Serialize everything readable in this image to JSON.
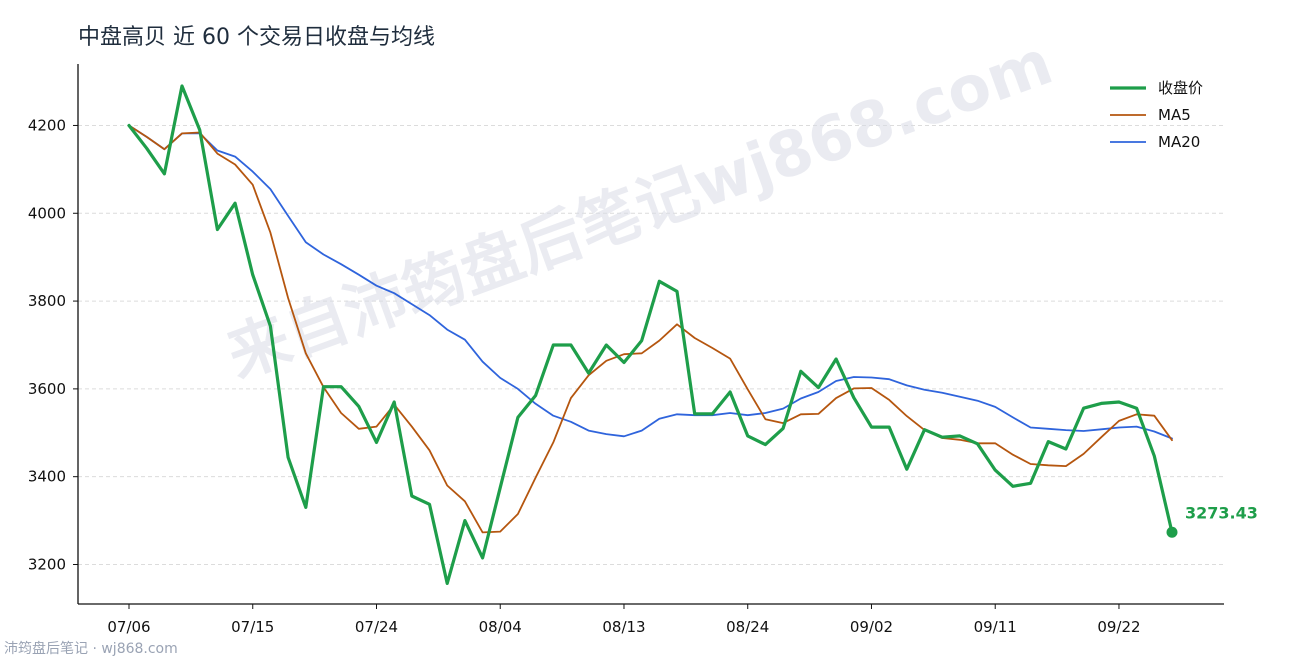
{
  "chart_data": {
    "type": "line",
    "title": "中盘高贝 近 60 个交易日收盘与均线",
    "xlabel": "",
    "ylabel": "",
    "ylim": [
      3110,
      4340
    ],
    "yticks": [
      3200,
      3400,
      3600,
      3800,
      4000,
      4200
    ],
    "x_tick_labels": [
      "07/06",
      "07/15",
      "07/24",
      "08/04",
      "08/13",
      "08/24",
      "09/02",
      "09/11",
      "09/22"
    ],
    "x_tick_indices": [
      0,
      7,
      14,
      21,
      28,
      35,
      42,
      49,
      56
    ],
    "grid": "horizontal dashed",
    "legend_position": "top-right",
    "series": [
      {
        "name": "收盘价",
        "color": "#1e9e4a",
        "values": [
          4200,
          4148,
          4090,
          4290,
          4190,
          3963,
          4023,
          3860,
          3743,
          3444,
          3330,
          3605,
          3605,
          3560,
          3478,
          3570,
          3356,
          3337,
          3157,
          3300,
          3215,
          3375,
          3535,
          3585,
          3700,
          3700,
          3636,
          3700,
          3660,
          3710,
          3845,
          3822,
          3543,
          3543,
          3593,
          3493,
          3473,
          3510,
          3640,
          3603,
          3668,
          3580,
          3513,
          3513,
          3417,
          3507,
          3490,
          3493,
          3475,
          3415,
          3378,
          3385,
          3480,
          3463,
          3556,
          3567,
          3570,
          3556,
          3447,
          3273.43
        ]
      },
      {
        "name": "MA5",
        "color": "#b5560f",
        "values": [
          4200,
          4174,
          4146,
          4182,
          4184,
          4136,
          4111,
          4065,
          3956,
          3807,
          3681,
          3604,
          3545,
          3509,
          3514,
          3564,
          3514,
          3460,
          3380,
          3344,
          3273,
          3275,
          3315,
          3398,
          3478,
          3579,
          3631,
          3664,
          3679,
          3681,
          3710,
          3747,
          3716,
          3693,
          3669,
          3599,
          3531,
          3522,
          3542,
          3543,
          3579,
          3601,
          3602,
          3575,
          3538,
          3506,
          3488,
          3484,
          3476,
          3476,
          3450,
          3429,
          3426,
          3424,
          3452,
          3490,
          3527,
          3542,
          3539,
          3483
        ]
      },
      {
        "name": "MA20",
        "color": "#2f64dc",
        "values": [
          4200,
          4174,
          4146,
          4182,
          4182,
          4143,
          4129,
          4095,
          4055,
          3994,
          3934,
          3906,
          3884,
          3860,
          3835,
          3818,
          3793,
          3768,
          3735,
          3712,
          3662,
          3625,
          3600,
          3566,
          3539,
          3525,
          3505,
          3497,
          3492,
          3505,
          3532,
          3542,
          3540,
          3540,
          3545,
          3540,
          3545,
          3555,
          3578,
          3593,
          3618,
          3627,
          3626,
          3622,
          3608,
          3598,
          3591,
          3582,
          3573,
          3559,
          3535,
          3512,
          3509,
          3506,
          3504,
          3508,
          3512,
          3514,
          3503,
          3487
        ]
      }
    ],
    "last_value_label": "3273.43",
    "watermark": "来自沛筠盘后笔记wj868.com",
    "footer": "沛筠盘后笔记 · wj868.com"
  }
}
